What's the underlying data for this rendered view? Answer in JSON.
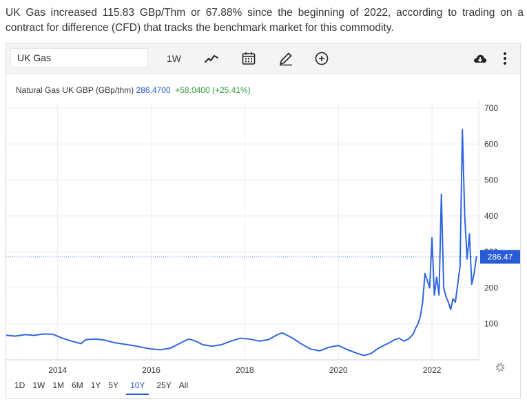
{
  "intro_text": "UK Gas increased 115.83 GBp/Thm or 67.88% since the beginning of 2022, according to trading on a contract for difference (CFD) that tracks the benchmark market for this commodity.",
  "toolbar": {
    "search_value": "UK Gas",
    "interval_label": "1W",
    "icons": [
      "line-chart-icon",
      "calendar-icon",
      "pencil-icon",
      "plus-circle-icon",
      "cloud-download-icon",
      "more-vertical-icon"
    ]
  },
  "series_header": {
    "name": "Natural Gas UK GBP (GBp/thm)",
    "price": "286.4700",
    "change": "+58.0400 (+25.41%)"
  },
  "last_price_label": "286.47",
  "colors": {
    "line": "#2f66e0",
    "accent": "#2a5bd7",
    "positive": "#2e9e3e",
    "grid": "#ececec"
  },
  "ranges": [
    "1D",
    "1W",
    "1M",
    "6M",
    "1Y",
    "5Y",
    "10Y",
    "25Y",
    "All"
  ],
  "active_range": "10Y",
  "chart_data": {
    "type": "line",
    "title": "",
    "xlabel": "",
    "ylabel": "",
    "xlim": [
      2012.9,
      2023.0
    ],
    "ylim": [
      0,
      700
    ],
    "y_ticks": [
      100,
      200,
      300,
      400,
      500,
      600,
      700
    ],
    "y_tick_labels": [
      "100",
      "200",
      "300",
      "400",
      "500",
      "600",
      "700"
    ],
    "x_ticks": [
      2014,
      2016,
      2018,
      2020,
      2022
    ],
    "x_tick_labels": [
      "2014",
      "2016",
      "2018",
      "2020",
      "2022"
    ],
    "grid": true,
    "last_value": 286.47,
    "series": [
      {
        "name": "Natural Gas UK GBP (GBp/thm)",
        "x": [
          2012.9,
          2013.1,
          2013.3,
          2013.5,
          2013.7,
          2013.9,
          2014.1,
          2014.3,
          2014.5,
          2014.6,
          2014.8,
          2015.0,
          2015.2,
          2015.4,
          2015.6,
          2015.8,
          2016.0,
          2016.2,
          2016.4,
          2016.6,
          2016.8,
          2016.95,
          2017.1,
          2017.3,
          2017.5,
          2017.7,
          2017.9,
          2018.1,
          2018.3,
          2018.5,
          2018.7,
          2018.8,
          2019.0,
          2019.2,
          2019.4,
          2019.6,
          2019.8,
          2020.0,
          2020.2,
          2020.4,
          2020.55,
          2020.7,
          2020.85,
          2021.0,
          2021.1,
          2021.2,
          2021.3,
          2021.4,
          2021.5,
          2021.6,
          2021.65,
          2021.7,
          2021.75,
          2021.8,
          2021.85,
          2021.9,
          2021.95,
          2022.0,
          2022.05,
          2022.1,
          2022.15,
          2022.2,
          2022.25,
          2022.3,
          2022.35,
          2022.4,
          2022.45,
          2022.5,
          2022.55,
          2022.6,
          2022.65,
          2022.7,
          2022.75,
          2022.8,
          2022.85,
          2022.9,
          2022.95
        ],
        "values": [
          68,
          66,
          70,
          68,
          72,
          71,
          60,
          52,
          45,
          56,
          58,
          55,
          48,
          44,
          40,
          35,
          30,
          28,
          32,
          45,
          58,
          52,
          42,
          38,
          42,
          52,
          60,
          58,
          52,
          56,
          70,
          75,
          62,
          45,
          30,
          25,
          35,
          40,
          28,
          18,
          12,
          18,
          32,
          42,
          48,
          56,
          60,
          52,
          58,
          72,
          88,
          100,
          120,
          160,
          240,
          220,
          200,
          340,
          180,
          230,
          180,
          460,
          200,
          175,
          160,
          140,
          170,
          160,
          210,
          260,
          640,
          400,
          280,
          350,
          210,
          240,
          286.47
        ]
      }
    ]
  }
}
